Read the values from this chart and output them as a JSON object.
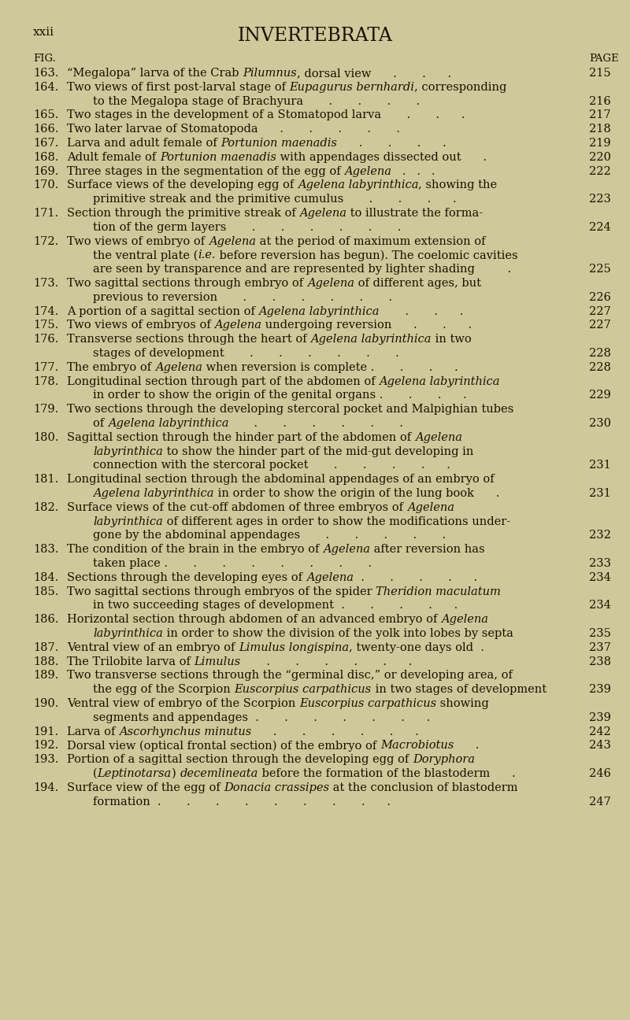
{
  "background_color": "#cec99a",
  "title": "INVERTEBRATA",
  "header_left": "xxii",
  "entries": [
    {
      "num": "163.",
      "lines": [
        [
          {
            "t": "“Megalopa” larva of the Crab ",
            "i": false
          },
          {
            "t": "Pilumnus",
            "i": true
          },
          {
            "t": ", dorsal view      .       .      .",
            "i": false
          }
        ]
      ],
      "page": "215",
      "page_line": 0
    },
    {
      "num": "164.",
      "lines": [
        [
          {
            "t": "Two views of first post-larval stage of ",
            "i": false
          },
          {
            "t": "Eupagurus bernhardi",
            "i": true
          },
          {
            "t": ", corresponding",
            "i": false
          }
        ],
        [
          {
            "t": "to the Megalopa stage of Brachyura       .       .       .       .",
            "i": false
          }
        ]
      ],
      "page": "216",
      "page_line": 1
    },
    {
      "num": "165.",
      "lines": [
        [
          {
            "t": "Two stages in the development of a Stomatopod larva       .       .      .",
            "i": false
          }
        ]
      ],
      "page": "217",
      "page_line": 0
    },
    {
      "num": "166.",
      "lines": [
        [
          {
            "t": "Two later larvae of Stomatopoda      .       .       .       .       .",
            "i": false
          }
        ]
      ],
      "page": "218",
      "page_line": 0
    },
    {
      "num": "167.",
      "lines": [
        [
          {
            "t": "Larva and adult female of ",
            "i": false
          },
          {
            "t": "Portunion maenadis",
            "i": true
          },
          {
            "t": "      .       .       .      .",
            "i": false
          }
        ]
      ],
      "page": "219",
      "page_line": 0
    },
    {
      "num": "168.",
      "lines": [
        [
          {
            "t": "Adult female of ",
            "i": false
          },
          {
            "t": "Portunion maenadis",
            "i": true
          },
          {
            "t": " with appendages dissected out      .",
            "i": false
          }
        ]
      ],
      "page": "220",
      "page_line": 0
    },
    {
      "num": "169.",
      "lines": [
        [
          {
            "t": "Three stages in the segmentation of the egg of ",
            "i": false
          },
          {
            "t": "Agelena",
            "i": true
          },
          {
            "t": "   .   .   .",
            "i": false
          }
        ]
      ],
      "page": "222",
      "page_line": 0
    },
    {
      "num": "170.",
      "lines": [
        [
          {
            "t": "Surface views of the developing egg of ",
            "i": false
          },
          {
            "t": "Agelena labyrinthica",
            "i": true
          },
          {
            "t": ", showing the",
            "i": false
          }
        ],
        [
          {
            "t": "primitive streak and the primitive cumulus       .       .       .      .",
            "i": false
          }
        ]
      ],
      "page": "223",
      "page_line": 1
    },
    {
      "num": "171.",
      "lines": [
        [
          {
            "t": "Section through the primitive streak of ",
            "i": false
          },
          {
            "t": "Agelena",
            "i": true
          },
          {
            "t": " to illustrate the forma-",
            "i": false
          }
        ],
        [
          {
            "t": "tion of the germ layers       .       .       .       .       .       .",
            "i": false
          }
        ]
      ],
      "page": "224",
      "page_line": 1
    },
    {
      "num": "172.",
      "lines": [
        [
          {
            "t": "Two views of embryo of ",
            "i": false
          },
          {
            "t": "Agelena",
            "i": true
          },
          {
            "t": " at the period of maximum extension of",
            "i": false
          }
        ],
        [
          {
            "t": "the ventral plate (",
            "i": false
          },
          {
            "t": "i.e.",
            "i": true
          },
          {
            "t": " before reversion has begun). The coelomic cavities",
            "i": false
          }
        ],
        [
          {
            "t": "are seen by transparence and are represented by lighter shading         .",
            "i": false
          }
        ]
      ],
      "page": "225",
      "page_line": 2
    },
    {
      "num": "173.",
      "lines": [
        [
          {
            "t": "Two sagittal sections through embryo of ",
            "i": false
          },
          {
            "t": "Agelena",
            "i": true
          },
          {
            "t": " of different ages, but",
            "i": false
          }
        ],
        [
          {
            "t": "previous to reversion       .       .       .       .       .       .",
            "i": false
          }
        ]
      ],
      "page": "226",
      "page_line": 1
    },
    {
      "num": "174.",
      "lines": [
        [
          {
            "t": "A portion of a sagittal section of ",
            "i": false
          },
          {
            "t": "Agelena labyrinthica",
            "i": true
          },
          {
            "t": "       .       .      .",
            "i": false
          }
        ]
      ],
      "page": "227",
      "page_line": 0
    },
    {
      "num": "175.",
      "lines": [
        [
          {
            "t": "Two views of embryos of ",
            "i": false
          },
          {
            "t": "Agelena",
            "i": true
          },
          {
            "t": " undergoing reversion      .       .      .",
            "i": false
          }
        ]
      ],
      "page": "227",
      "page_line": 0
    },
    {
      "num": "176.",
      "lines": [
        [
          {
            "t": "Transverse sections through the heart of ",
            "i": false
          },
          {
            "t": "Agelena labyrinthica",
            "i": true
          },
          {
            "t": " in two",
            "i": false
          }
        ],
        [
          {
            "t": "stages of development       .       .       .       .       .       .",
            "i": false
          }
        ]
      ],
      "page": "228",
      "page_line": 1
    },
    {
      "num": "177.",
      "lines": [
        [
          {
            "t": "The embryo of ",
            "i": false
          },
          {
            "t": "Agelena",
            "i": true
          },
          {
            "t": " when reversion is complete .       .       .      .",
            "i": false
          }
        ]
      ],
      "page": "228",
      "page_line": 0
    },
    {
      "num": "178.",
      "lines": [
        [
          {
            "t": "Longitudinal section through part of the abdomen of ",
            "i": false
          },
          {
            "t": "Agelena labyrinthica",
            "i": true
          }
        ],
        [
          {
            "t": "in order to show the origin of the genital organs .       .       .      .",
            "i": false
          }
        ]
      ],
      "page": "229",
      "page_line": 1
    },
    {
      "num": "179.",
      "lines": [
        [
          {
            "t": "Two sections through the developing stercoral pocket and Malpighian tubes",
            "i": false
          }
        ],
        [
          {
            "t": "of ",
            "i": false
          },
          {
            "t": "Agelena labyrinthica",
            "i": true
          },
          {
            "t": "       .       .       .       .       .       .",
            "i": false
          }
        ]
      ],
      "page": "230",
      "page_line": 1
    },
    {
      "num": "180.",
      "lines": [
        [
          {
            "t": "Sagittal section through the hinder part of the abdomen of ",
            "i": false
          },
          {
            "t": "Agelena",
            "i": true
          }
        ],
        [
          {
            "t": "labyrinthica",
            "i": true
          },
          {
            "t": " to show the hinder part of the mid-gut developing in",
            "i": false
          }
        ],
        [
          {
            "t": "connection with the stercoral pocket       .       .       .       .      .",
            "i": false
          }
        ]
      ],
      "page": "231",
      "page_line": 2
    },
    {
      "num": "181.",
      "lines": [
        [
          {
            "t": "Longitudinal section through the abdominal appendages of an embryo of",
            "i": false
          }
        ],
        [
          {
            "t": "Agelena labyrinthica",
            "i": true
          },
          {
            "t": " in order to show the origin of the lung book      .",
            "i": false
          }
        ]
      ],
      "page": "231",
      "page_line": 1
    },
    {
      "num": "182.",
      "lines": [
        [
          {
            "t": "Surface views of the cut-off abdomen of three embryos of ",
            "i": false
          },
          {
            "t": "Agelena",
            "i": true
          }
        ],
        [
          {
            "t": "labyrinthica",
            "i": true
          },
          {
            "t": " of different ages in order to show the modifications under-",
            "i": false
          }
        ],
        [
          {
            "t": "gone by the abdominal appendages       .       .       .       .       .",
            "i": false
          }
        ]
      ],
      "page": "232",
      "page_line": 2
    },
    {
      "num": "183.",
      "lines": [
        [
          {
            "t": "The condition of the brain in the embryo of ",
            "i": false
          },
          {
            "t": "Agelena",
            "i": true
          },
          {
            "t": " after reversion has",
            "i": false
          }
        ],
        [
          {
            "t": "taken place .       .       .       .       .       .       .       .",
            "i": false
          }
        ]
      ],
      "page": "233",
      "page_line": 1
    },
    {
      "num": "184.",
      "lines": [
        [
          {
            "t": "Sections through the developing eyes of ",
            "i": false
          },
          {
            "t": "Agelena",
            "i": true
          },
          {
            "t": "  .       .       .       .      .",
            "i": false
          }
        ]
      ],
      "page": "234",
      "page_line": 0
    },
    {
      "num": "185.",
      "lines": [
        [
          {
            "t": "Two sagittal sections through embryos of the spider ",
            "i": false
          },
          {
            "t": "Theridion maculatum",
            "i": true
          }
        ],
        [
          {
            "t": "in two succeeding stages of development  .       .       .       .      .",
            "i": false
          }
        ]
      ],
      "page": "234",
      "page_line": 1
    },
    {
      "num": "186.",
      "lines": [
        [
          {
            "t": "Horizontal section through abdomen of an advanced embryo of ",
            "i": false
          },
          {
            "t": "Agelena",
            "i": true
          }
        ],
        [
          {
            "t": "labyrinthica",
            "i": true
          },
          {
            "t": " in order to show the division of the yolk into lobes by septa",
            "i": false
          }
        ]
      ],
      "page": "235",
      "page_line": 1
    },
    {
      "num": "187.",
      "lines": [
        [
          {
            "t": "Ventral view of an embryo of ",
            "i": false
          },
          {
            "t": "Limulus longispina",
            "i": true
          },
          {
            "t": ", twenty-one days old  .",
            "i": false
          }
        ]
      ],
      "page": "237",
      "page_line": 0
    },
    {
      "num": "188.",
      "lines": [
        [
          {
            "t": "The Trilobite larva of ",
            "i": false
          },
          {
            "t": "Limulus",
            "i": true
          },
          {
            "t": "       .       .       .       .       .      .",
            "i": false
          }
        ]
      ],
      "page": "238",
      "page_line": 0
    },
    {
      "num": "189.",
      "lines": [
        [
          {
            "t": "Two transverse sections through the “germinal disc,” or developing area, of",
            "i": false
          }
        ],
        [
          {
            "t": "the egg of the Scorpion ",
            "i": false
          },
          {
            "t": "Euscorpius carpathicus",
            "i": true
          },
          {
            "t": " in two stages of development",
            "i": false
          }
        ]
      ],
      "page": "239",
      "page_line": 1
    },
    {
      "num": "190.",
      "lines": [
        [
          {
            "t": "Ventral view of embryo of the Scorpion ",
            "i": false
          },
          {
            "t": "Euscorpius carpathicus",
            "i": true
          },
          {
            "t": " showing",
            "i": false
          }
        ],
        [
          {
            "t": "segments and appendages  .       .       .       .       .       .      .",
            "i": false
          }
        ]
      ],
      "page": "239",
      "page_line": 1
    },
    {
      "num": "191.",
      "lines": [
        [
          {
            "t": "Larva of ",
            "i": false
          },
          {
            "t": "Ascorhynchus minutus",
            "i": true
          },
          {
            "t": "      .       .       .       .       .      .",
            "i": false
          }
        ]
      ],
      "page": "242",
      "page_line": 0
    },
    {
      "num": "192.",
      "lines": [
        [
          {
            "t": "Dorsal view (optical frontal section) of the embryo of ",
            "i": false
          },
          {
            "t": "Macrobiotus",
            "i": true
          },
          {
            "t": "      .",
            "i": false
          }
        ]
      ],
      "page": "243",
      "page_line": 0
    },
    {
      "num": "193.",
      "lines": [
        [
          {
            "t": "Portion of a sagittal section through the developing egg of ",
            "i": false
          },
          {
            "t": "Doryphora",
            "i": true
          }
        ],
        [
          {
            "t": "(",
            "i": false
          },
          {
            "t": "Leptinotarsa",
            "i": true
          },
          {
            "t": ") ",
            "i": false
          },
          {
            "t": "decemlineata",
            "i": true
          },
          {
            "t": " before the formation of the blastoderm      .",
            "i": false
          }
        ]
      ],
      "page": "246",
      "page_line": 1
    },
    {
      "num": "194.",
      "lines": [
        [
          {
            "t": "Surface view of the egg of ",
            "i": false
          },
          {
            "t": "Donacia crassipes",
            "i": true
          },
          {
            "t": " at the conclusion of blastoderm",
            "i": false
          }
        ],
        [
          {
            "t": "formation  .       .       .       .       .       .       .       .      .",
            "i": false
          }
        ]
      ],
      "page": "247",
      "page_line": 1
    }
  ]
}
